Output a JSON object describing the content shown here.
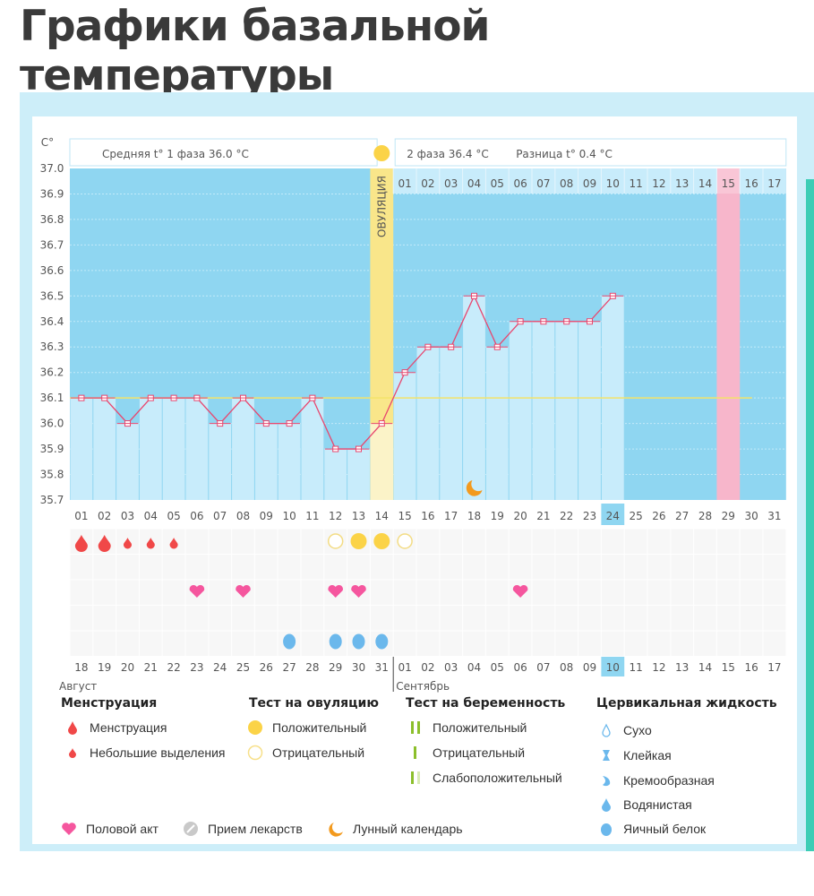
{
  "page_title": "Графики базальной температуры",
  "chart_data": {
    "type": "line",
    "ylabel": "C°",
    "ylim": [
      35.7,
      37.0
    ],
    "yticks": [
      "37.0",
      "36.9",
      "36.8",
      "36.7",
      "36.6",
      "36.5",
      "36.4",
      "36.3",
      "36.2",
      "36.1",
      "36.0",
      "35.9",
      "35.8",
      "35.7"
    ],
    "header": {
      "phase1": "Средняя t° 1 фаза 36.0 °C",
      "phase2": "2 фаза 36.4 °C",
      "diff": "Разница t° 0.4 °C",
      "ovulation": "ОВУЛЯЦИЯ"
    },
    "cycle_days": [
      "01",
      "02",
      "03",
      "04",
      "05",
      "06",
      "07",
      "08",
      "09",
      "10",
      "11",
      "12",
      "13",
      "14",
      "15",
      "16",
      "17",
      "18",
      "19",
      "20",
      "21",
      "22",
      "23",
      "24",
      "25",
      "26",
      "27",
      "28",
      "29",
      "30",
      "31"
    ],
    "temperatures": [
      36.1,
      36.1,
      36.0,
      36.1,
      36.1,
      36.1,
      36.0,
      36.1,
      36.0,
      36.0,
      36.1,
      35.9,
      35.9,
      36.0,
      36.2,
      36.3,
      36.3,
      36.5,
      36.3,
      36.4,
      36.4,
      36.4,
      36.4,
      36.5
    ],
    "coverline": 36.1,
    "ovulation_day": 14,
    "today_day": 24,
    "expected_period_day": 29,
    "dpo_labels": [
      "01",
      "02",
      "03",
      "04",
      "05",
      "06",
      "07",
      "08",
      "09",
      "10",
      "11",
      "12",
      "13",
      "14",
      "15",
      "16",
      "17"
    ],
    "dates": [
      "18",
      "19",
      "20",
      "21",
      "22",
      "23",
      "24",
      "25",
      "26",
      "27",
      "28",
      "29",
      "30",
      "31",
      "01",
      "02",
      "03",
      "04",
      "05",
      "06",
      "07",
      "08",
      "09",
      "10",
      "11",
      "12",
      "13",
      "14",
      "15",
      "16",
      "17"
    ],
    "weekend_dates_idx": [
      3,
      4,
      10,
      11,
      17,
      18,
      24,
      25
    ],
    "months": [
      "Август",
      "Сентябрь"
    ],
    "menstruation": {
      "1": "heavy",
      "2": "heavy",
      "3": "light",
      "4": "light",
      "5": "light"
    },
    "ovulation_tests": {
      "12": "negative",
      "13": "positive",
      "14": "positive",
      "15": "negative"
    },
    "intercourse": [
      6,
      8,
      12,
      13,
      20
    ],
    "cervical_fluid": {
      "10": "egg-white",
      "12": "egg-white",
      "13": "egg-white",
      "14": "egg-white"
    },
    "moon_day": 18,
    "colors": {
      "bg_dark": "#8fd6f1",
      "bar": "#c8ecfb",
      "ovulation": "#f9e68a",
      "period": "#f7b6cb",
      "line": "#e8476f",
      "coverline": "#f3e36a",
      "weekend": "#e0315f"
    }
  },
  "legend": {
    "menstruation": {
      "title": "Менструация",
      "items": [
        "Менструация",
        "Небольшие выделения"
      ]
    },
    "ovulation_test": {
      "title": "Тест на овуляцию",
      "items": [
        "Положительный",
        "Отрицательный"
      ]
    },
    "pregnancy_test": {
      "title": "Тест на беременность",
      "items": [
        "Положительный",
        "Отрицательный",
        "Слабоположительный"
      ]
    },
    "cervical": {
      "title": "Цервикальная жидкость",
      "items": [
        "Сухо",
        "Клейкая",
        "Кремообразная",
        "Водянистая",
        "Яичный белок"
      ]
    },
    "other": [
      "Половой акт",
      "Прием лекарств",
      "Лунный календарь"
    ]
  }
}
